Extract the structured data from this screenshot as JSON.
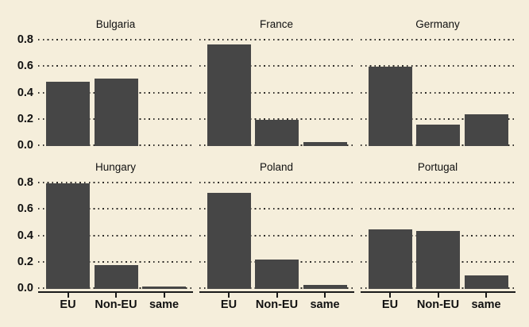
{
  "chart_data": {
    "type": "bar",
    "layout": "2x3 facet grid, shared axes, x tick labels on bottom row only",
    "categories": [
      "EU",
      "Non-EU",
      "same"
    ],
    "y_ticks": [
      0.0,
      0.2,
      0.4,
      0.6,
      0.8
    ],
    "y_tick_labels": [
      "0.0",
      "0.2",
      "0.4",
      "0.6",
      "0.8"
    ],
    "ylim": [
      0,
      0.87
    ],
    "grid": "dotted horizontal gridlines at each y tick",
    "facets": [
      {
        "title": "Bulgaria",
        "row": 0,
        "col": 0,
        "values": [
          0.49,
          0.51,
          0.0
        ]
      },
      {
        "title": "France",
        "row": 0,
        "col": 1,
        "values": [
          0.77,
          0.2,
          0.03
        ]
      },
      {
        "title": "Germany",
        "row": 0,
        "col": 2,
        "values": [
          0.6,
          0.16,
          0.24
        ]
      },
      {
        "title": "Hungary",
        "row": 1,
        "col": 0,
        "values": [
          0.8,
          0.18,
          0.02
        ]
      },
      {
        "title": "Poland",
        "row": 1,
        "col": 1,
        "values": [
          0.73,
          0.22,
          0.03
        ]
      },
      {
        "title": "Portugal",
        "row": 1,
        "col": 2,
        "values": [
          0.45,
          0.44,
          0.1
        ]
      }
    ],
    "colors": {
      "background": "#F5EEDB",
      "bar": "#464646",
      "grid_dots": "#2e2c28",
      "axis": "#1a1a1a",
      "text": "#111111"
    }
  }
}
